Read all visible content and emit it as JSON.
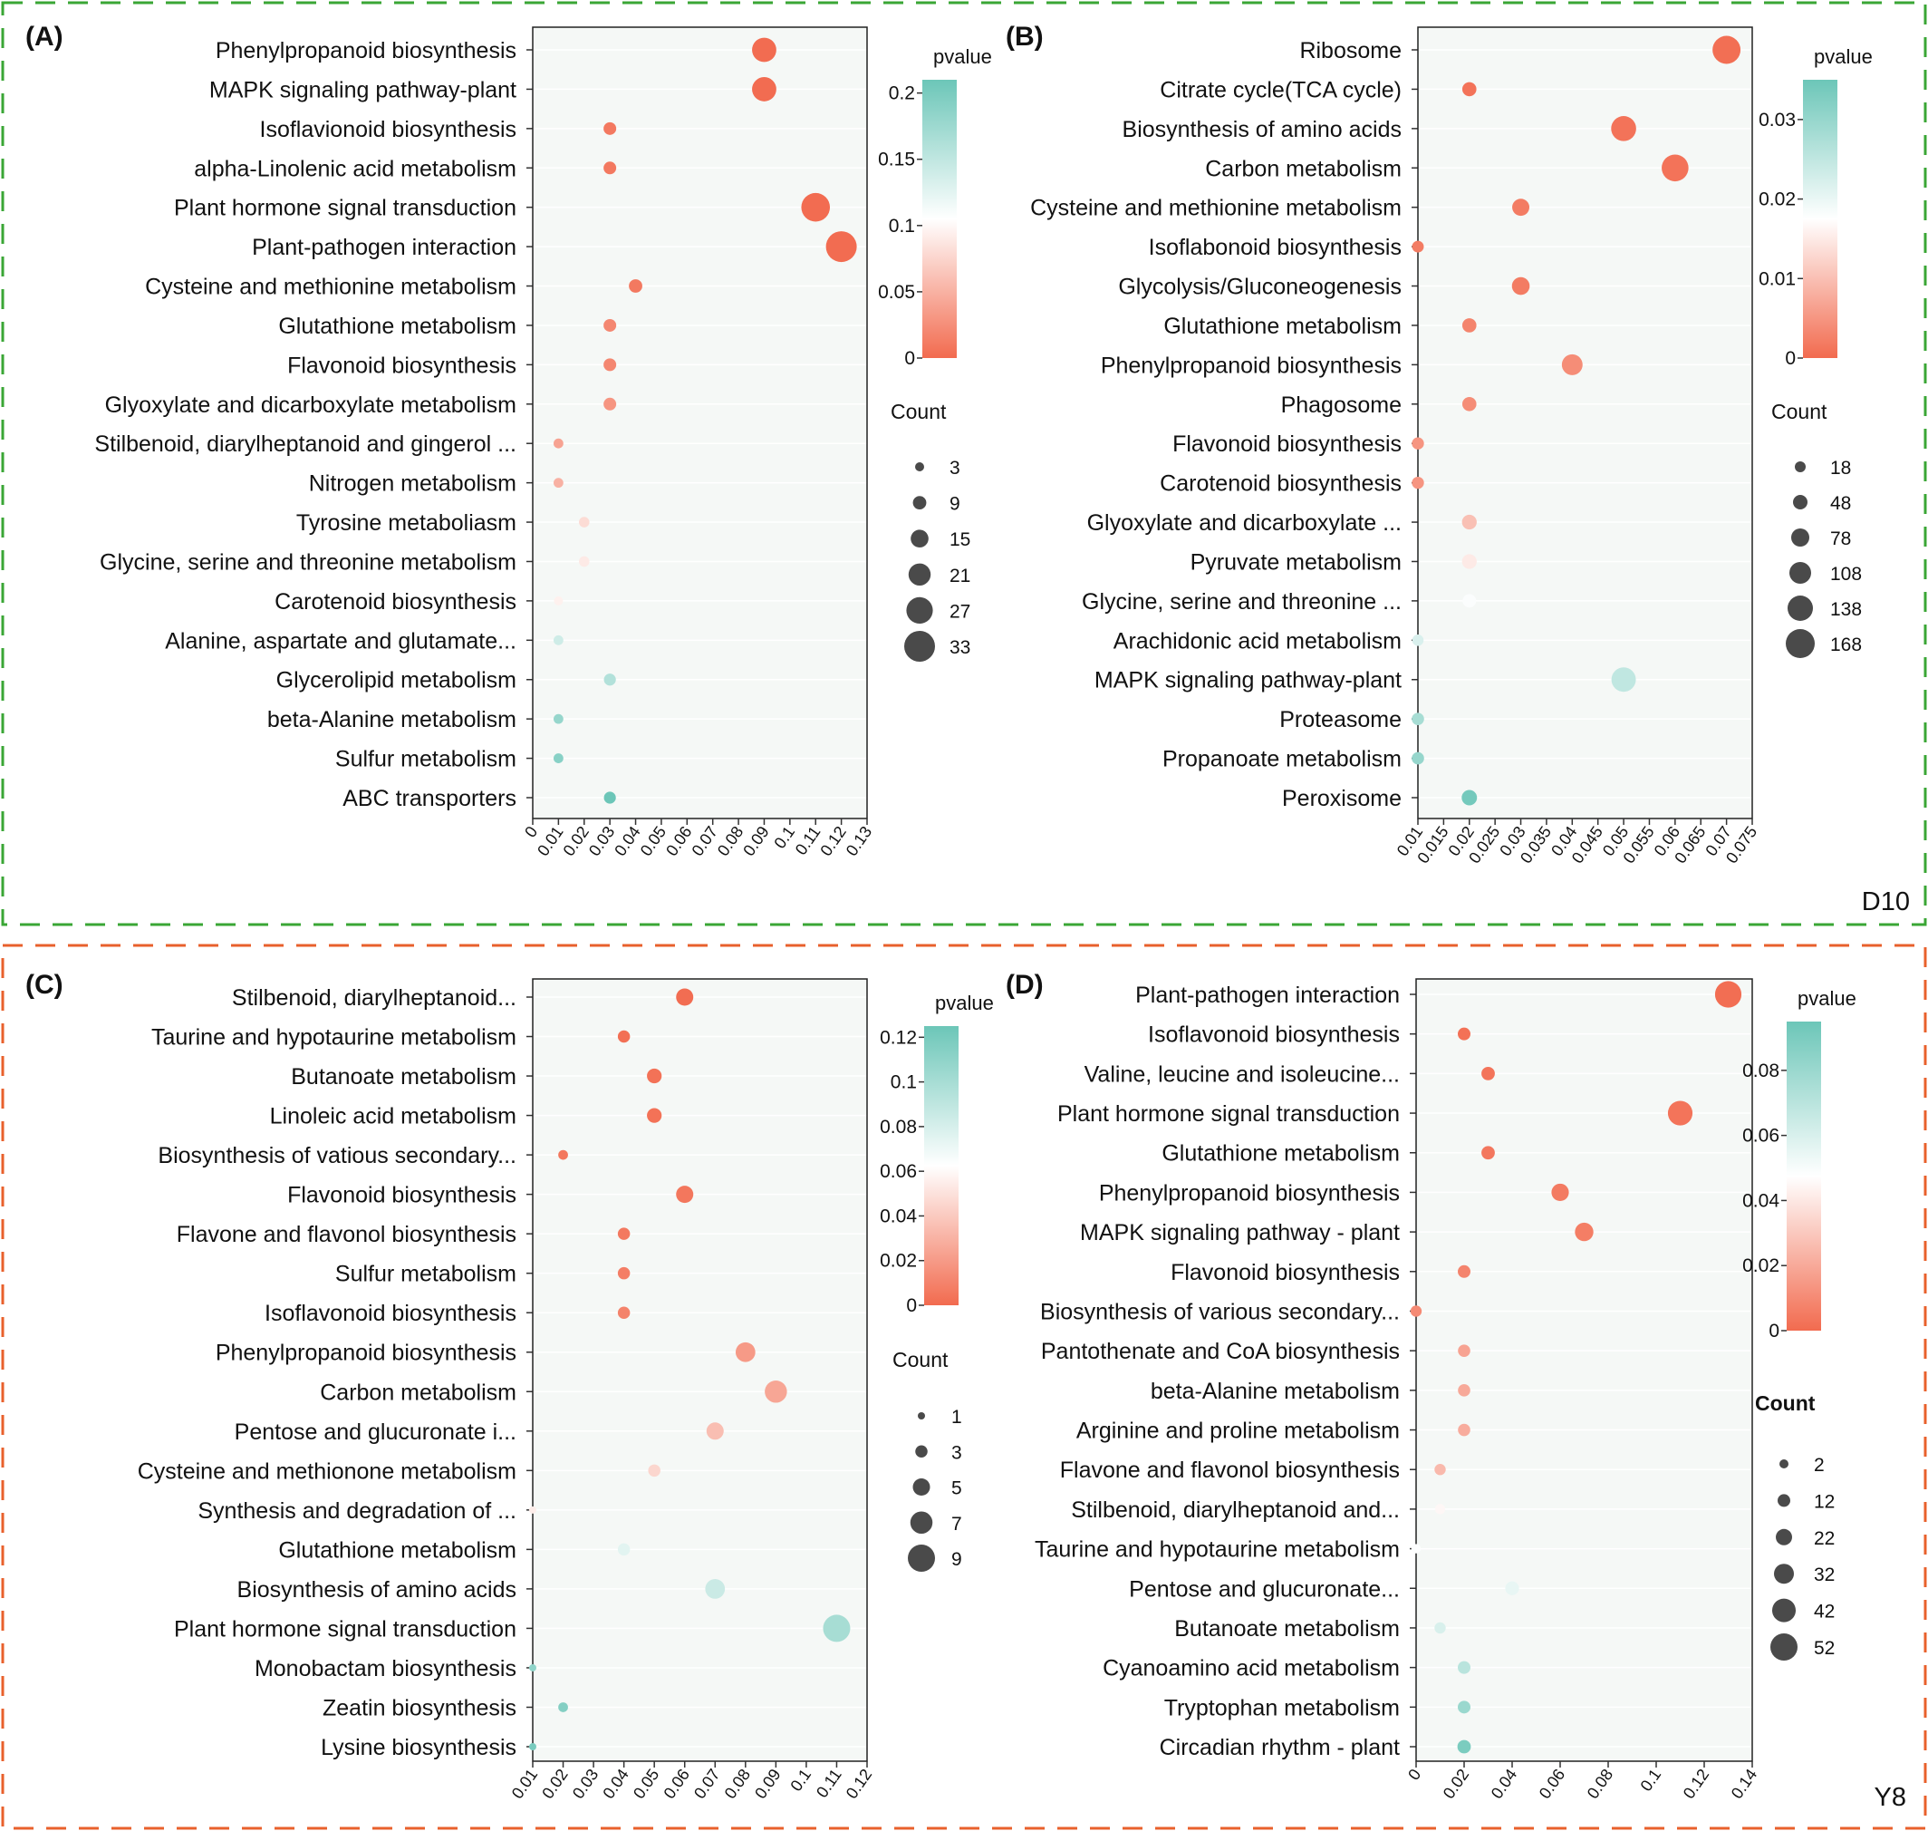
{
  "groups": [
    {
      "label": "D10",
      "color": "#3aa635"
    },
    {
      "label": "Y8",
      "color": "#e8602c"
    }
  ],
  "colors": {
    "low": "#f26b4f",
    "mid": "#ffffff",
    "high": "#6cc6b8",
    "plot_bg": "#f5f8f6"
  },
  "chart_data": [
    {
      "panel": "(A)",
      "type": "scatter",
      "legend_title": "pvalue",
      "size_title": "Count",
      "xlim": [
        0,
        0.13
      ],
      "x_ticks": [
        0,
        0.01,
        0.02,
        0.03,
        0.04,
        0.05,
        0.06,
        0.07,
        0.08,
        0.09,
        0.1,
        0.11,
        0.12,
        0.13
      ],
      "x_tick_labels": [
        "0",
        "0.01",
        "0.02",
        "0.03",
        "0.04",
        "0.05",
        "0.06",
        "0.07",
        "0.08",
        "0.09",
        "0.1",
        "0.11",
        "0.12",
        "0.13"
      ],
      "color_range": [
        0,
        0.21
      ],
      "color_ticks": [
        0,
        0.05,
        0.1,
        0.15,
        0.2
      ],
      "color_tick_labels": [
        "0",
        "0.05",
        "0.1",
        "0.15",
        "0.2"
      ],
      "count_range": [
        3,
        33
      ],
      "count_legend": [
        3,
        9,
        15,
        21,
        27,
        33
      ],
      "count_legend_labels": [
        "3",
        "9",
        "15",
        "21",
        "27",
        "33"
      ],
      "categories": [
        "Phenylpropanoid biosynthesis",
        "MAPK signaling pathway-plant",
        "Isoflavionoid biosynthesis",
        "alpha-Linolenic acid metabolism",
        "Plant hormone signal transduction",
        "Plant-pathogen interaction",
        "Cysteine and methionine metabolism",
        "Glutathione metabolism",
        "Flavonoid biosynthesis",
        "Glyoxylate and dicarboxylate metabolism",
        "Stilbenoid, diarylheptanoid and gingerol ...",
        "Nitrogen metabolism",
        "Tyrosine metaboliasm",
        "Glycine, serine and threonine metabolism",
        "Carotenoid biosynthesis",
        "Alanine, aspartate and glutamate...",
        "Glycerolipid metabolism",
        "beta-Alanine metabolism",
        "Sulfur metabolism",
        "ABC transporters"
      ],
      "x": [
        0.09,
        0.09,
        0.03,
        0.03,
        0.11,
        0.12,
        0.04,
        0.03,
        0.03,
        0.03,
        0.01,
        0.01,
        0.02,
        0.02,
        0.01,
        0.01,
        0.03,
        0.01,
        0.01,
        0.03
      ],
      "count": [
        24,
        24,
        8,
        8,
        30,
        33,
        9,
        8,
        8,
        8,
        4,
        4,
        5,
        5,
        3,
        4,
        7,
        4,
        4,
        7
      ],
      "pvalue": [
        0.001,
        0.001,
        0.01,
        0.01,
        0.001,
        0.001,
        0.01,
        0.02,
        0.02,
        0.03,
        0.04,
        0.05,
        0.08,
        0.09,
        0.095,
        0.14,
        0.16,
        0.18,
        0.19,
        0.21
      ]
    },
    {
      "panel": "(B)",
      "type": "scatter",
      "legend_title": "pvalue",
      "size_title": "Count",
      "xlim": [
        0.01,
        0.075
      ],
      "x_ticks": [
        0.01,
        0.015,
        0.02,
        0.025,
        0.03,
        0.035,
        0.04,
        0.045,
        0.05,
        0.055,
        0.06,
        0.065,
        0.07,
        0.075
      ],
      "x_tick_labels": [
        "0.01",
        "0.015",
        "0.02",
        "0.025",
        "0.03",
        "0.035",
        "0.04",
        "0.045",
        "0.05",
        "0.055",
        "0.06",
        "0.065",
        "0.07",
        "0.075"
      ],
      "color_range": [
        0,
        0.035
      ],
      "color_ticks": [
        0,
        0.01,
        0.02,
        0.03
      ],
      "color_tick_labels": [
        "0",
        "0.01",
        "0.02",
        "0.03"
      ],
      "count_range": [
        18,
        168
      ],
      "count_legend": [
        18,
        48,
        78,
        108,
        138,
        168
      ],
      "count_legend_labels": [
        "18",
        "48",
        "78",
        "108",
        "138",
        "168"
      ],
      "categories": [
        "Ribosome",
        "Citrate cycle(TCA cycle)",
        "Biosynthesis of amino acids",
        "Carbon metabolism",
        "Cysteine and methionine metabolism",
        "Isoflabonoid biosynthesis",
        "Glycolysis/Gluconeogenesis",
        "Glutathione metabolism",
        "Phenylpropanoid biosynthesis",
        "Phagosome",
        "Flavonoid biosynthesis",
        "Carotenoid biosynthesis",
        "Glyoxylate and dicarboxylate ...",
        "Pyruvate metabolism",
        "Glycine, serine and threonine ...",
        "Arachidonic acid metabolism",
        "MAPK signaling pathway-plant",
        "Proteasome",
        "Propanoate metabolism",
        "Peroxisome"
      ],
      "x": [
        0.07,
        0.02,
        0.05,
        0.06,
        0.03,
        0.01,
        0.03,
        0.02,
        0.04,
        0.02,
        0.01,
        0.01,
        0.02,
        0.02,
        0.02,
        0.01,
        0.05,
        0.01,
        0.01,
        0.02
      ],
      "count": [
        160,
        45,
        135,
        150,
        70,
        25,
        75,
        45,
        100,
        45,
        28,
        28,
        50,
        50,
        40,
        22,
        130,
        30,
        30,
        55
      ],
      "pvalue": [
        0.0005,
        0.001,
        0.001,
        0.001,
        0.002,
        0.002,
        0.002,
        0.003,
        0.004,
        0.004,
        0.005,
        0.005,
        0.01,
        0.015,
        0.018,
        0.022,
        0.025,
        0.028,
        0.03,
        0.034
      ]
    },
    {
      "panel": "(C)",
      "type": "scatter",
      "legend_title": "pvalue",
      "size_title": "Count",
      "xlim": [
        0.01,
        0.12
      ],
      "x_ticks": [
        0.01,
        0.02,
        0.03,
        0.04,
        0.05,
        0.06,
        0.07,
        0.08,
        0.09,
        0.1,
        0.11,
        0.12
      ],
      "x_tick_labels": [
        "0.01",
        "0.02",
        "0.03",
        "0.04",
        "0.05",
        "0.06",
        "0.07",
        "0.08",
        "0.09",
        "0.1",
        "0.11",
        "0.12"
      ],
      "color_range": [
        0,
        0.125
      ],
      "color_ticks": [
        0,
        0.02,
        0.04,
        0.06,
        0.08,
        0.1,
        0.12
      ],
      "color_tick_labels": [
        "0",
        "0.02",
        "0.04",
        "0.06",
        "0.08",
        "0.1",
        "0.12"
      ],
      "count_range": [
        1,
        9
      ],
      "count_legend": [
        1,
        3,
        5,
        7,
        9
      ],
      "count_legend_labels": [
        "1",
        "3",
        "5",
        "7",
        "9"
      ],
      "categories": [
        "Stilbenoid, diarylheptanoid...",
        "Taurine and hypotaurine metabolism",
        "Butanoate metabolism",
        "Linoleic acid metabolism",
        "Biosynthesis of vatious secondary...",
        "Flavonoid biosynthesis",
        "Flavone and flavonol biosynthesis",
        "Sulfur metabolism",
        "Isoflavonoid biosynthesis",
        "Phenylpropanoid biosynthesis",
        "Carbon metabolism",
        "Pentose and glucuronate i...",
        "Cysteine and methionone metabolism",
        "Synthesis and degradation of ...",
        "Glutathione metabolism",
        "Biosynthesis of amino acids",
        "Plant hormone signal transduction",
        "Monobactam biosynthesis",
        "Zeatin biosynthesis",
        "Lysine biosynthesis"
      ],
      "x": [
        0.06,
        0.04,
        0.05,
        0.05,
        0.02,
        0.06,
        0.04,
        0.04,
        0.04,
        0.08,
        0.09,
        0.07,
        0.05,
        0.01,
        0.04,
        0.07,
        0.11,
        0.01,
        0.02,
        0.01
      ],
      "count": [
        5,
        3,
        4,
        4,
        2,
        5,
        3,
        3,
        3,
        6,
        7,
        5,
        3,
        1,
        3,
        6,
        9,
        1,
        2,
        1
      ],
      "pvalue": [
        0.001,
        0.002,
        0.003,
        0.003,
        0.005,
        0.005,
        0.006,
        0.008,
        0.01,
        0.02,
        0.025,
        0.035,
        0.045,
        0.055,
        0.075,
        0.085,
        0.1,
        0.11,
        0.115,
        0.12
      ]
    },
    {
      "panel": "(D)",
      "type": "scatter",
      "legend_title": "pvalue",
      "size_title": "Count",
      "xlim": [
        0,
        0.14
      ],
      "x_ticks": [
        0,
        0.02,
        0.04,
        0.06,
        0.08,
        0.1,
        0.12,
        0.14
      ],
      "x_tick_labels": [
        "0",
        "0.02",
        "0.04",
        "0.06",
        "0.08",
        "0.1",
        "0.12",
        "0.14"
      ],
      "color_range": [
        0,
        0.095
      ],
      "color_ticks": [
        0,
        0.02,
        0.04,
        0.06,
        0.08
      ],
      "color_tick_labels": [
        "0",
        "0.02",
        "0.04",
        "0.06",
        "0.08"
      ],
      "count_range": [
        2,
        52
      ],
      "count_legend": [
        2,
        12,
        22,
        32,
        42,
        52
      ],
      "count_legend_labels": [
        "2",
        "12",
        "22",
        "32",
        "42",
        "52"
      ],
      "categories": [
        "Plant-pathogen interaction",
        "Isoflavonoid biosynthesis",
        "Valine, leucine and isoleucine...",
        "Plant hormone signal transduction",
        "Glutathione metabolism",
        "Phenylpropanoid biosynthesis",
        "MAPK signaling pathway - plant",
        "Flavonoid biosynthesis",
        "Biosynthesis of various secondary...",
        "Pantothenate and CoA biosynthesis",
        "beta-Alanine metabolism",
        "Arginine and proline metabolism",
        "Flavone and flavonol biosynthesis",
        "Stilbenoid, diarylheptanoid and...",
        "Taurine and hypotaurine metabolism",
        "Pentose and glucuronate...",
        "Butanoate metabolism",
        "Cyanoamino acid metabolism",
        "Tryptophan metabolism",
        "Circadian rhythm - plant"
      ],
      "x": [
        0.13,
        0.02,
        0.03,
        0.11,
        0.03,
        0.06,
        0.07,
        0.02,
        0.0,
        0.02,
        0.02,
        0.02,
        0.01,
        0.01,
        0.0,
        0.04,
        0.01,
        0.02,
        0.02,
        0.02
      ],
      "count": [
        50,
        12,
        14,
        45,
        14,
        25,
        28,
        12,
        8,
        11,
        11,
        11,
        8,
        5,
        3,
        15,
        8,
        12,
        12,
        14
      ],
      "pvalue": [
        0.001,
        0.002,
        0.003,
        0.003,
        0.004,
        0.005,
        0.006,
        0.008,
        0.01,
        0.018,
        0.02,
        0.021,
        0.025,
        0.045,
        0.048,
        0.055,
        0.06,
        0.07,
        0.08,
        0.09
      ]
    }
  ]
}
